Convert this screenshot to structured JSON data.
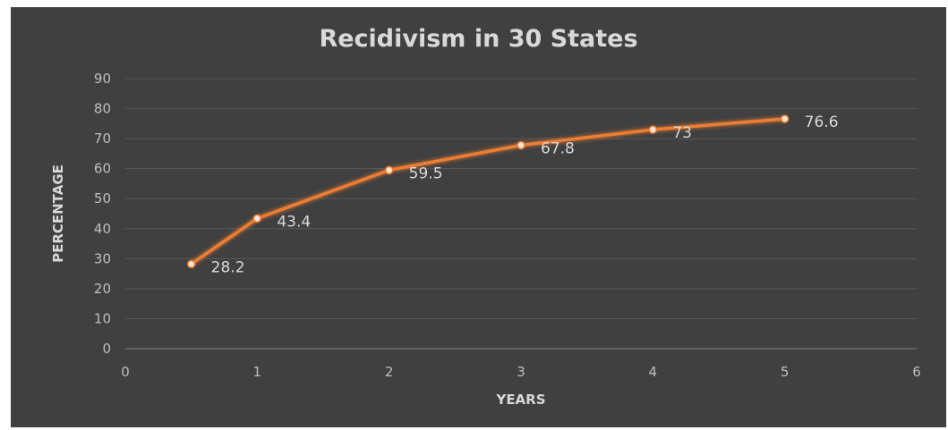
{
  "chart_data": {
    "type": "scatter",
    "title": "Recidivism in 30 States",
    "xlabel": "YEARS",
    "ylabel": "PERCENTAGE",
    "xlim": [
      0,
      6
    ],
    "ylim": [
      0,
      90
    ],
    "x_ticks": [
      "0",
      "1",
      "2",
      "3",
      "4",
      "5",
      "6"
    ],
    "y_ticks": [
      "0",
      "10",
      "20",
      "30",
      "40",
      "50",
      "60",
      "70",
      "80",
      "90"
    ],
    "grid": true,
    "legend": "none",
    "series": [
      {
        "x": [
          0.5,
          1,
          2,
          3,
          4,
          5
        ],
        "y": [
          28.2,
          43.4,
          59.5,
          67.8,
          73,
          76.6
        ],
        "labels": [
          "28.2",
          "43.4",
          "59.5",
          "67.8",
          "73",
          "76.6"
        ],
        "color": "#ed7d31",
        "marker_color": "#fbe5d6"
      }
    ],
    "background": "#404040",
    "gridline_color": "#595959"
  }
}
